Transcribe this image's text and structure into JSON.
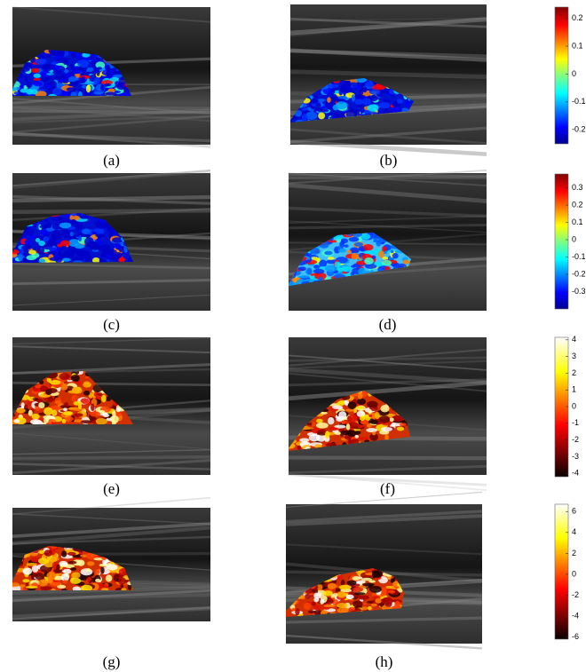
{
  "panels": [
    {
      "label": "(a)"
    },
    {
      "label": "(b)"
    },
    {
      "label": "(c)"
    },
    {
      "label": "(d)"
    },
    {
      "label": "(e)"
    },
    {
      "label": "(f)"
    },
    {
      "label": "(g)"
    },
    {
      "label": "(h)"
    }
  ],
  "colorbars": [
    {
      "colormap": "jet",
      "lim": [
        -0.25,
        0.24
      ],
      "ticks": [
        0.2,
        0.1,
        0,
        -0.1,
        -0.2
      ]
    },
    {
      "colormap": "jet",
      "lim": [
        -0.4,
        0.38
      ],
      "ticks": [
        0.3,
        0.2,
        0.1,
        0,
        -0.1,
        -0.2,
        -0.3
      ]
    },
    {
      "colormap": "hot",
      "lim": [
        -4.2,
        4.15
      ],
      "ticks": [
        4,
        3,
        2,
        1,
        0,
        -1,
        -2,
        -3,
        -4
      ]
    },
    {
      "colormap": "hot",
      "lim": [
        -6.2,
        6.7
      ],
      "ticks": [
        6,
        4,
        2,
        0,
        -2,
        -4,
        -6
      ]
    }
  ]
}
